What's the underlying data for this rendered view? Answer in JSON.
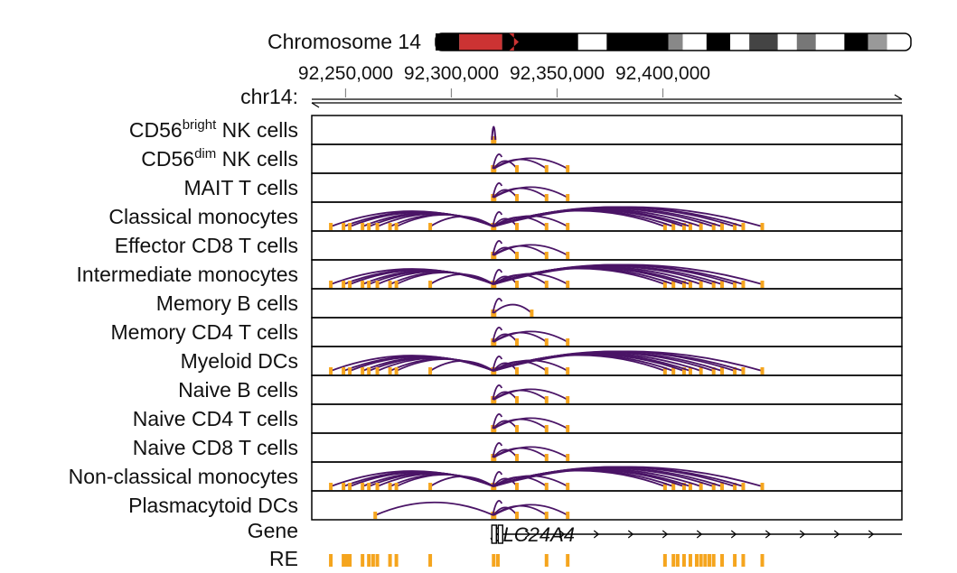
{
  "chromosome": {
    "title": "Chromosome 14",
    "axis_label": "chr14:",
    "ticks": [
      {
        "pos": 92250000,
        "label": "92,250,000"
      },
      {
        "pos": 92300000,
        "label": "92,300,000"
      },
      {
        "pos": 92350000,
        "label": "92,350,000"
      },
      {
        "pos": 92400000,
        "label": "92,400,000"
      }
    ],
    "range": [
      92234000,
      92513000
    ],
    "bands": [
      {
        "from": 0.0,
        "to": 0.05,
        "color": "#000000"
      },
      {
        "from": 0.05,
        "to": 0.14,
        "color": "#cc3333"
      },
      {
        "from": 0.14,
        "to": 0.3,
        "color": "#000000"
      },
      {
        "from": 0.3,
        "to": 0.36,
        "color": "#ffffff"
      },
      {
        "from": 0.36,
        "to": 0.49,
        "color": "#000000"
      },
      {
        "from": 0.49,
        "to": 0.52,
        "color": "#888888"
      },
      {
        "from": 0.52,
        "to": 0.57,
        "color": "#ffffff"
      },
      {
        "from": 0.57,
        "to": 0.62,
        "color": "#000000"
      },
      {
        "from": 0.62,
        "to": 0.66,
        "color": "#ffffff"
      },
      {
        "from": 0.66,
        "to": 0.72,
        "color": "#444444"
      },
      {
        "from": 0.72,
        "to": 0.76,
        "color": "#ffffff"
      },
      {
        "from": 0.76,
        "to": 0.8,
        "color": "#777777"
      },
      {
        "from": 0.8,
        "to": 0.86,
        "color": "#ffffff"
      },
      {
        "from": 0.86,
        "to": 0.91,
        "color": "#000000"
      },
      {
        "from": 0.91,
        "to": 0.95,
        "color": "#999999"
      },
      {
        "from": 0.95,
        "to": 1.0,
        "color": "#ffffff"
      }
    ]
  },
  "colors": {
    "loop": "#4a1466",
    "element": "#f5a51e",
    "highlight_label": "#d42a2a",
    "normal_label": "#111111",
    "border": "#000000"
  },
  "tracks": [
    {
      "label": "CD56",
      "sup": "bright",
      "suffix": " NK cells",
      "highlight": false,
      "pattern": "single"
    },
    {
      "label": "CD56",
      "sup": "dim",
      "suffix": " NK cells",
      "highlight": false,
      "pattern": "local"
    },
    {
      "label": "MAIT T cells",
      "highlight": false,
      "pattern": "local"
    },
    {
      "label": "Classical monocytes",
      "highlight": true,
      "pattern": "wide"
    },
    {
      "label": "Effector CD8 T cells",
      "highlight": false,
      "pattern": "local"
    },
    {
      "label": "Intermediate monocytes",
      "highlight": true,
      "pattern": "wide"
    },
    {
      "label": "Memory B cells",
      "highlight": false,
      "pattern": "local_small"
    },
    {
      "label": "Memory CD4 T cells",
      "highlight": false,
      "pattern": "local"
    },
    {
      "label": "Myeloid DCs",
      "highlight": true,
      "pattern": "wide"
    },
    {
      "label": "Naive B cells",
      "highlight": false,
      "pattern": "local"
    },
    {
      "label": "Naive CD4 T cells",
      "highlight": false,
      "pattern": "local"
    },
    {
      "label": "Naive CD8 T cells",
      "highlight": false,
      "pattern": "local"
    },
    {
      "label": "Non-classical monocytes",
      "highlight": true,
      "pattern": "wide"
    },
    {
      "label": "Plasmacytoid DCs",
      "highlight": false,
      "pattern": "pdc"
    }
  ],
  "gene": {
    "label": "Gene",
    "name": "SLC24A4",
    "start": 92320000,
    "end": 92513000
  },
  "re": {
    "label": "RE"
  },
  "anchor": 92320000,
  "loop_targets": {
    "single": [],
    "local": [
      92331000,
      92345000,
      92355000
    ],
    "local_small": [
      92338000
    ],
    "wide": [
      92243000,
      92249000,
      92252000,
      92258000,
      92261000,
      92265000,
      92271000,
      92274000,
      92290000,
      92331000,
      92345000,
      92355000,
      92401000,
      92405000,
      92410000,
      92413000,
      92418000,
      92424000,
      92428000,
      92434000,
      92438000,
      92447000
    ],
    "pdc": [
      92264000,
      92331000,
      92345000,
      92355000
    ]
  },
  "regulatory_elements": [
    92243000,
    92249000,
    92250500,
    92252000,
    92258000,
    92261000,
    92263000,
    92265000,
    92271000,
    92274000,
    92290000,
    92320000,
    92322000,
    92345000,
    92355000,
    92401000,
    92405000,
    92407000,
    92410000,
    92413000,
    92416000,
    92418000,
    92420000,
    92422000,
    92424000,
    92428000,
    92434000,
    92438000,
    92447000
  ]
}
